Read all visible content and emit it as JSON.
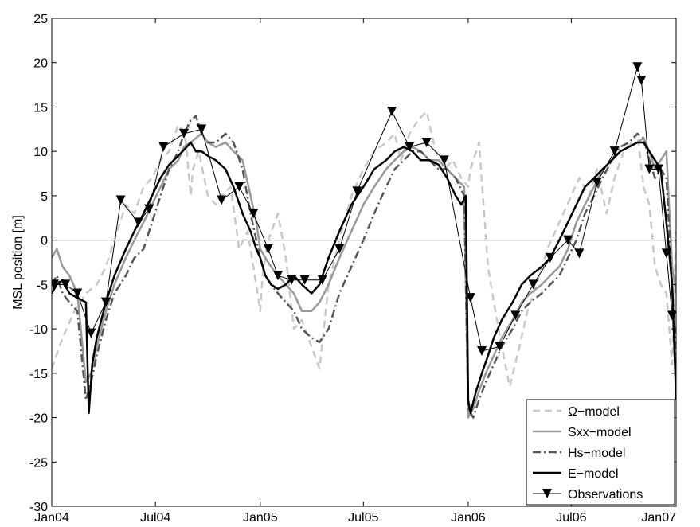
{
  "chart_data": {
    "type": "line",
    "title": "",
    "xlabel": "",
    "ylabel": "MSL position [m]",
    "xlim": [
      "2004-01-01",
      "2007-01-01"
    ],
    "ylim": [
      -30,
      25
    ],
    "grid": false,
    "legend_position": "bottom-right",
    "x_ticks": [
      {
        "date": "2004-01-01",
        "label": "Jan04"
      },
      {
        "date": "2004-07-01",
        "label": "Jul04"
      },
      {
        "date": "2005-01-01",
        "label": "Jan05"
      },
      {
        "date": "2005-07-01",
        "label": "Jul05"
      },
      {
        "date": "2006-01-01",
        "label": "Jan06"
      },
      {
        "date": "2006-07-01",
        "label": "Jul06"
      },
      {
        "date": "2007-01-01",
        "label": "Jan07"
      }
    ],
    "y_ticks": [
      25,
      20,
      15,
      10,
      5,
      0,
      -5,
      -10,
      -15,
      -20,
      -25,
      -30
    ],
    "reference_line": 0,
    "series": [
      {
        "name": "Ω−model",
        "color": "#c8c8c8",
        "style": "dashed",
        "x": [
          "2004-01-01",
          "2004-01-20",
          "2004-02-10",
          "2004-03-01",
          "2004-03-20",
          "2004-04-05",
          "2004-04-20",
          "2004-05-10",
          "2004-05-25",
          "2004-06-10",
          "2004-06-25",
          "2004-07-10",
          "2004-07-25",
          "2004-08-10",
          "2004-08-22",
          "2004-09-01",
          "2004-09-05",
          "2004-09-15",
          "2004-10-01",
          "2004-10-15",
          "2004-10-25",
          "2004-11-10",
          "2004-11-25",
          "2004-12-10",
          "2004-12-20",
          "2005-01-01",
          "2005-01-05",
          "2005-01-15",
          "2005-02-01",
          "2005-02-15",
          "2005-03-01",
          "2005-03-15",
          "2005-04-01",
          "2005-04-15",
          "2005-05-01",
          "2005-05-20",
          "2005-06-10",
          "2005-07-01",
          "2005-07-20",
          "2005-08-10",
          "2005-08-25",
          "2005-09-05",
          "2005-09-20",
          "2005-10-05",
          "2005-10-20",
          "2005-11-05",
          "2005-11-20",
          "2005-12-05",
          "2005-12-20",
          "2006-01-01",
          "2006-01-05",
          "2006-01-20",
          "2006-02-05",
          "2006-02-15",
          "2006-03-01",
          "2006-03-15",
          "2006-04-01",
          "2006-04-15",
          "2006-05-01",
          "2006-05-20",
          "2006-06-10",
          "2006-07-01",
          "2006-07-15",
          "2006-08-01",
          "2006-08-15",
          "2006-09-01",
          "2006-09-15",
          "2006-10-01",
          "2006-10-15",
          "2006-10-25",
          "2006-11-05",
          "2006-11-15",
          "2006-11-25",
          "2006-12-05",
          "2006-12-15",
          "2006-12-25",
          "2007-01-01"
        ],
        "y": [
          -14.5,
          -11,
          -8,
          -6,
          -5,
          -3,
          0,
          4,
          3,
          6,
          7,
          9,
          10,
          13,
          12,
          5,
          8,
          10,
          5,
          4,
          5,
          6,
          -1,
          1,
          -3,
          -8,
          -4,
          0,
          3,
          -2,
          -10,
          -9,
          -12,
          -14.5,
          -5,
          0,
          5,
          8,
          10,
          11,
          12,
          9,
          12,
          13.5,
          14.5,
          10,
          8,
          9,
          7,
          6,
          8,
          11,
          -3,
          -7,
          -12,
          -16.5,
          -12,
          -8,
          -5,
          -1,
          2,
          5,
          7,
          5,
          8,
          3,
          7,
          10,
          11,
          12,
          6,
          4,
          -3,
          -5,
          -6,
          -14,
          1
        ]
      },
      {
        "name": "Sxx−model",
        "color": "#9a9a9a",
        "style": "solid",
        "x": [
          "2004-01-01",
          "2004-01-10",
          "2004-01-20",
          "2004-02-01",
          "2004-02-15",
          "2004-03-01",
          "2004-03-10",
          "2004-03-20",
          "2004-04-05",
          "2004-04-20",
          "2004-05-10",
          "2004-05-25",
          "2004-06-10",
          "2004-06-25",
          "2004-07-10",
          "2004-07-25",
          "2004-08-10",
          "2004-08-20",
          "2004-09-01",
          "2004-09-10",
          "2004-09-20",
          "2004-10-01",
          "2004-10-15",
          "2004-11-01",
          "2004-11-15",
          "2004-12-01",
          "2004-12-15",
          "2004-12-25",
          "2005-01-01",
          "2005-01-10",
          "2005-01-20",
          "2005-02-01",
          "2005-02-15",
          "2005-03-01",
          "2005-03-15",
          "2005-04-01",
          "2005-04-15",
          "2005-05-01",
          "2005-05-20",
          "2005-06-10",
          "2005-07-01",
          "2005-07-20",
          "2005-08-10",
          "2005-08-25",
          "2005-09-10",
          "2005-09-25",
          "2005-10-10",
          "2005-10-25",
          "2005-11-10",
          "2005-11-25",
          "2005-12-10",
          "2005-12-25",
          "2006-01-01",
          "2006-01-10",
          "2006-01-20",
          "2006-02-01",
          "2006-02-15",
          "2006-03-01",
          "2006-03-20",
          "2006-04-05",
          "2006-04-20",
          "2006-05-10",
          "2006-05-25",
          "2006-06-10",
          "2006-06-25",
          "2006-07-10",
          "2006-07-25",
          "2006-08-10",
          "2006-08-25",
          "2006-09-10",
          "2006-09-25",
          "2006-10-10",
          "2006-10-25",
          "2006-11-05",
          "2006-11-15",
          "2006-11-25",
          "2006-12-05",
          "2006-12-15",
          "2006-12-25",
          "2007-01-01"
        ],
        "y": [
          -2,
          -1,
          -3,
          -4,
          -6,
          -16,
          -15,
          -12,
          -8,
          -5,
          -2,
          0,
          2,
          4,
          6,
          8,
          9,
          10.5,
          11,
          11.5,
          12,
          11,
          10.5,
          11,
          10,
          9,
          5,
          2,
          -1,
          -2,
          -3,
          -4,
          -5,
          -6,
          -8,
          -8,
          -7,
          -5,
          -2,
          1,
          4,
          6,
          8,
          9,
          10,
          10.5,
          10,
          9,
          9,
          8,
          7,
          6,
          -20,
          -19,
          -17,
          -15,
          -13,
          -11,
          -9,
          -7,
          -6,
          -5,
          -4,
          -3,
          -1,
          2,
          4,
          6,
          8,
          9,
          10,
          10.5,
          11,
          11.5,
          10,
          8,
          9,
          10,
          -3,
          -6
        ]
      },
      {
        "name": "Hs−model",
        "color": "#555555",
        "style": "dashdot",
        "x": [
          "2004-01-01",
          "2004-01-10",
          "2004-01-20",
          "2004-02-01",
          "2004-02-15",
          "2004-03-01",
          "2004-03-10",
          "2004-03-20",
          "2004-04-05",
          "2004-04-20",
          "2004-05-10",
          "2004-05-25",
          "2004-06-10",
          "2004-06-25",
          "2004-07-10",
          "2004-07-25",
          "2004-08-10",
          "2004-08-20",
          "2004-09-01",
          "2004-09-10",
          "2004-09-20",
          "2004-10-01",
          "2004-10-15",
          "2004-11-01",
          "2004-11-15",
          "2004-12-01",
          "2004-12-15",
          "2004-12-25",
          "2005-01-01",
          "2005-01-10",
          "2005-01-20",
          "2005-02-01",
          "2005-02-15",
          "2005-03-01",
          "2005-03-15",
          "2005-04-01",
          "2005-04-15",
          "2005-05-01",
          "2005-05-20",
          "2005-06-10",
          "2005-07-01",
          "2005-07-20",
          "2005-08-10",
          "2005-08-25",
          "2005-09-10",
          "2005-09-25",
          "2005-10-10",
          "2005-10-25",
          "2005-11-10",
          "2005-11-25",
          "2005-12-10",
          "2005-12-25",
          "2006-01-01",
          "2006-01-10",
          "2006-01-20",
          "2006-02-01",
          "2006-02-15",
          "2006-03-01",
          "2006-03-20",
          "2006-04-05",
          "2006-04-20",
          "2006-05-10",
          "2006-05-25",
          "2006-06-10",
          "2006-06-25",
          "2006-07-10",
          "2006-07-25",
          "2006-08-10",
          "2006-08-25",
          "2006-09-10",
          "2006-09-25",
          "2006-10-10",
          "2006-10-25",
          "2006-11-05",
          "2006-11-15",
          "2006-11-25",
          "2006-12-05",
          "2006-12-15",
          "2006-12-25",
          "2007-01-01"
        ],
        "y": [
          -5,
          -4,
          -6,
          -7,
          -8,
          -18,
          -16,
          -13,
          -9,
          -6,
          -4,
          -2,
          -1,
          2,
          5,
          8,
          10,
          12,
          13.5,
          14,
          12,
          11,
          11,
          12,
          11,
          8,
          3,
          0,
          -2,
          -4,
          -5,
          -6,
          -7,
          -8,
          -10,
          -11,
          -11.5,
          -10,
          -6,
          -3,
          0,
          3,
          6,
          8,
          9,
          10,
          10,
          9,
          8,
          8,
          7,
          5,
          -19,
          -20,
          -18,
          -16,
          -14,
          -12,
          -10,
          -8,
          -7,
          -6,
          -5,
          -4,
          -2,
          0,
          3,
          5,
          7,
          9,
          10.5,
          11,
          12,
          11.5,
          9,
          7,
          8,
          7,
          -5,
          -13
        ]
      },
      {
        "name": "E−model",
        "color": "#000000",
        "style": "solid",
        "x": [
          "2004-01-01",
          "2004-01-10",
          "2004-01-20",
          "2004-02-01",
          "2004-02-15",
          "2004-03-01",
          "2004-03-06",
          "2004-03-12",
          "2004-03-20",
          "2004-04-05",
          "2004-04-20",
          "2004-05-10",
          "2004-05-25",
          "2004-06-10",
          "2004-06-25",
          "2004-07-10",
          "2004-07-25",
          "2004-08-10",
          "2004-08-25",
          "2004-09-01",
          "2004-09-10",
          "2004-09-20",
          "2004-10-01",
          "2004-10-15",
          "2004-11-01",
          "2004-11-15",
          "2004-12-01",
          "2004-12-15",
          "2004-12-25",
          "2005-01-01",
          "2005-01-10",
          "2005-01-20",
          "2005-02-01",
          "2005-02-15",
          "2005-03-01",
          "2005-03-15",
          "2005-04-01",
          "2005-04-15",
          "2005-05-01",
          "2005-05-20",
          "2005-06-10",
          "2005-07-01",
          "2005-07-20",
          "2005-08-10",
          "2005-08-25",
          "2005-09-10",
          "2005-09-25",
          "2005-10-10",
          "2005-10-25",
          "2005-11-10",
          "2005-11-25",
          "2005-12-10",
          "2005-12-20",
          "2005-12-28",
          "2006-01-01",
          "2006-01-05",
          "2006-01-15",
          "2006-01-25",
          "2006-02-05",
          "2006-02-15",
          "2006-03-01",
          "2006-03-20",
          "2006-04-05",
          "2006-04-20",
          "2006-05-10",
          "2006-05-25",
          "2006-06-10",
          "2006-06-25",
          "2006-07-10",
          "2006-07-25",
          "2006-08-10",
          "2006-08-25",
          "2006-09-10",
          "2006-09-25",
          "2006-10-10",
          "2006-10-25",
          "2006-11-05",
          "2006-11-15",
          "2006-11-25",
          "2006-12-05",
          "2006-12-15",
          "2006-12-25",
          "2007-01-01"
        ],
        "y": [
          -6,
          -5,
          -4.5,
          -6,
          -6.5,
          -7,
          -19.5,
          -14,
          -11,
          -7,
          -4,
          -1,
          1,
          3,
          5,
          7,
          8.5,
          9.5,
          10.5,
          11,
          10,
          10,
          9.5,
          9,
          8,
          6,
          3,
          1,
          -1,
          -2,
          -4,
          -5,
          -5.5,
          -5,
          -4,
          -5,
          -6,
          -5,
          -2,
          1,
          4,
          6,
          8,
          9,
          10,
          10.5,
          10,
          9,
          9,
          8.5,
          7,
          5,
          4,
          5,
          -18,
          -19.5,
          -17,
          -15,
          -13,
          -11,
          -9,
          -7,
          -5,
          -4,
          -3,
          -2,
          0,
          2,
          4,
          6,
          7,
          8,
          9,
          10,
          10.5,
          11,
          11,
          10,
          9,
          8,
          2,
          -5,
          -18
        ]
      },
      {
        "name": "Observations",
        "color": "#000000",
        "style": "solid-marker",
        "x": [
          "2004-01-05",
          "2004-01-25",
          "2004-02-15",
          "2004-03-10",
          "2004-04-05",
          "2004-05-01",
          "2004-06-01",
          "2004-06-20",
          "2004-07-15",
          "2004-08-20",
          "2004-09-20",
          "2004-10-25",
          "2004-11-25",
          "2004-12-20",
          "2005-01-15",
          "2005-02-01",
          "2005-02-25",
          "2005-03-20",
          "2005-04-20",
          "2005-05-20",
          "2005-06-20",
          "2005-08-20",
          "2005-09-20",
          "2005-10-20",
          "2005-11-20",
          "2006-01-05",
          "2006-01-25",
          "2006-02-25",
          "2006-03-25",
          "2006-04-25",
          "2006-05-25",
          "2006-06-25",
          "2006-07-15",
          "2006-08-15",
          "2006-09-15",
          "2006-10-25",
          "2006-11-01",
          "2006-11-15",
          "2006-12-01",
          "2006-12-15",
          "2006-12-25"
        ],
        "y": [
          -5,
          -5,
          -6,
          -10.5,
          -7,
          4.5,
          2,
          3.5,
          10.5,
          12,
          12.5,
          4.5,
          6,
          3,
          -1,
          -4,
          -4.5,
          -4.5,
          -4.5,
          -1,
          5.5,
          14.5,
          10.5,
          11,
          9,
          -6.5,
          -12.5,
          -12,
          -8.5,
          -5,
          -2,
          0,
          -1.5,
          6.5,
          10,
          19.5,
          18,
          8,
          8,
          -1.5,
          -8.5
        ]
      }
    ]
  }
}
